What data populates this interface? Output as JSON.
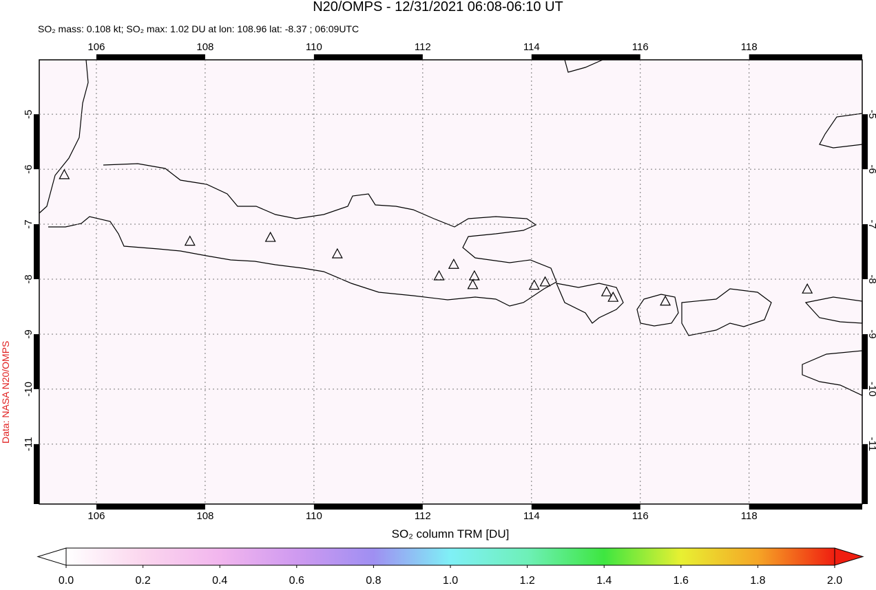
{
  "chart_data": {
    "type": "map",
    "title": "N20/OMPS - 12/31/2021 06:08-06:10 UT",
    "subtitle": "SO₂ mass: 0.108 kt; SO₂ max: 1.02 DU at lon: 108.96 lat: -8.37 ; 06:09UTC",
    "credit": "Data: NASA N20/OMPS",
    "xlim": [
      104.95,
      120.08
    ],
    "ylim": [
      -12.09,
      -4.01
    ],
    "xticks": [
      106,
      108,
      110,
      112,
      114,
      116,
      118
    ],
    "yticks": [
      -5,
      -6,
      -7,
      -8,
      -9,
      -10,
      -11
    ],
    "grid": true,
    "volcanoes": {
      "lon": [
        105.41,
        107.72,
        109.2,
        110.43,
        112.3,
        112.57,
        112.95,
        112.92,
        114.05,
        114.25,
        115.38,
        115.5,
        116.46,
        119.07
      ],
      "lat": [
        -6.11,
        -7.32,
        -7.25,
        -7.55,
        -7.95,
        -7.74,
        -7.95,
        -8.11,
        -8.12,
        -8.06,
        -8.24,
        -8.34,
        -8.41,
        -8.19
      ]
    },
    "colorbar": {
      "label": "SO₂ column TRM [DU]",
      "lim": [
        0,
        2
      ],
      "ticks": [
        {
          "value": 0,
          "label": "0.0"
        },
        0.2,
        0.4,
        0.6,
        0.8,
        {
          "value": 1,
          "label": "1.0"
        },
        1.2,
        1.4,
        1.6,
        1.8,
        {
          "value": 2,
          "label": "2.0"
        }
      ]
    }
  }
}
